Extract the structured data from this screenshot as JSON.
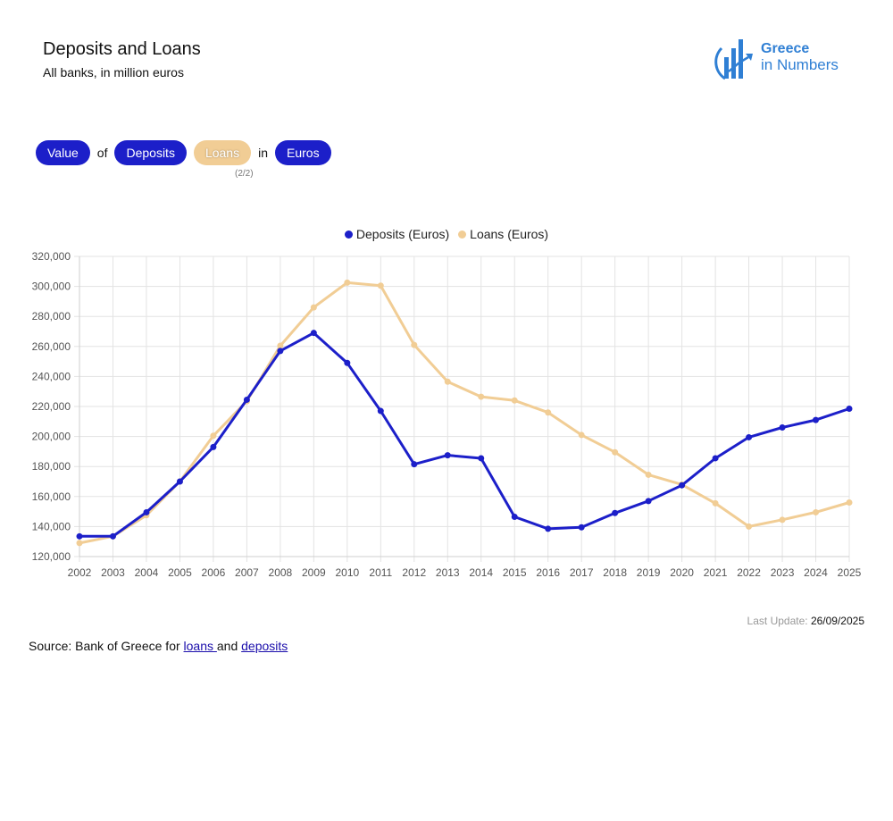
{
  "header": {
    "title": "Deposits and Loans",
    "subtitle": "All banks, in million euros"
  },
  "logo": {
    "line1": "Greece",
    "line2": "in Numbers"
  },
  "controls": {
    "measure": "Value",
    "word_of": "of",
    "item1": "Deposits",
    "item2": "Loans",
    "word_in": "in",
    "unit": "Euros",
    "counter": "(2/2)"
  },
  "colors": {
    "deposits": "#1c1fc9",
    "loans": "#f1cd95",
    "accent": "#2f7fd4"
  },
  "chart_data": {
    "type": "line",
    "x": [
      "2002",
      "2003",
      "2004",
      "2005",
      "2006",
      "2007",
      "2008",
      "2009",
      "2010",
      "2011",
      "2012",
      "2013",
      "2014",
      "2015",
      "2016",
      "2017",
      "2018",
      "2019",
      "2020",
      "2021",
      "2022",
      "2023",
      "2024",
      "2025"
    ],
    "ylim": [
      120000,
      320000
    ],
    "yticks": [
      {
        "value": 120000,
        "label": "120,000"
      },
      {
        "value": 140000,
        "label": "140,000"
      },
      {
        "value": 160000,
        "label": "160,000"
      },
      {
        "value": 180000,
        "label": "180,000"
      },
      {
        "value": 200000,
        "label": "200,000"
      },
      {
        "value": 220000,
        "label": "220,000"
      },
      {
        "value": 240000,
        "label": "240,000"
      },
      {
        "value": 260000,
        "label": "260,000"
      },
      {
        "value": 280000,
        "label": "280,000"
      },
      {
        "value": 300000,
        "label": "300,000"
      },
      {
        "value": 320000,
        "label": "320,000"
      }
    ],
    "grid": true,
    "legend_position": "top",
    "series": [
      {
        "name": "Deposits (Euros)",
        "color": "#1c1fc9",
        "values": [
          133500,
          133500,
          149500,
          170000,
          193000,
          224500,
          257000,
          269000,
          249000,
          217000,
          181500,
          187500,
          185500,
          146500,
          138500,
          139500,
          149000,
          157000,
          167500,
          185500,
          199500,
          206000,
          211000,
          218500
        ]
      },
      {
        "name": "Loans (Euros)",
        "color": "#f1cd95",
        "values": [
          129000,
          133500,
          147500,
          170000,
          200500,
          223500,
          260500,
          286000,
          302500,
          300500,
          261000,
          236500,
          226500,
          224000,
          216000,
          201000,
          189500,
          174500,
          168000,
          155500,
          140000,
          144500,
          149500,
          156000
        ]
      }
    ]
  },
  "footer": {
    "last_update_label": "Last Update:",
    "last_update_value": "26/09/2025",
    "source_prefix": "Source: Bank of Greece for ",
    "loans_link": "loans ",
    "and_text": "and ",
    "deposits_link": "deposits"
  }
}
